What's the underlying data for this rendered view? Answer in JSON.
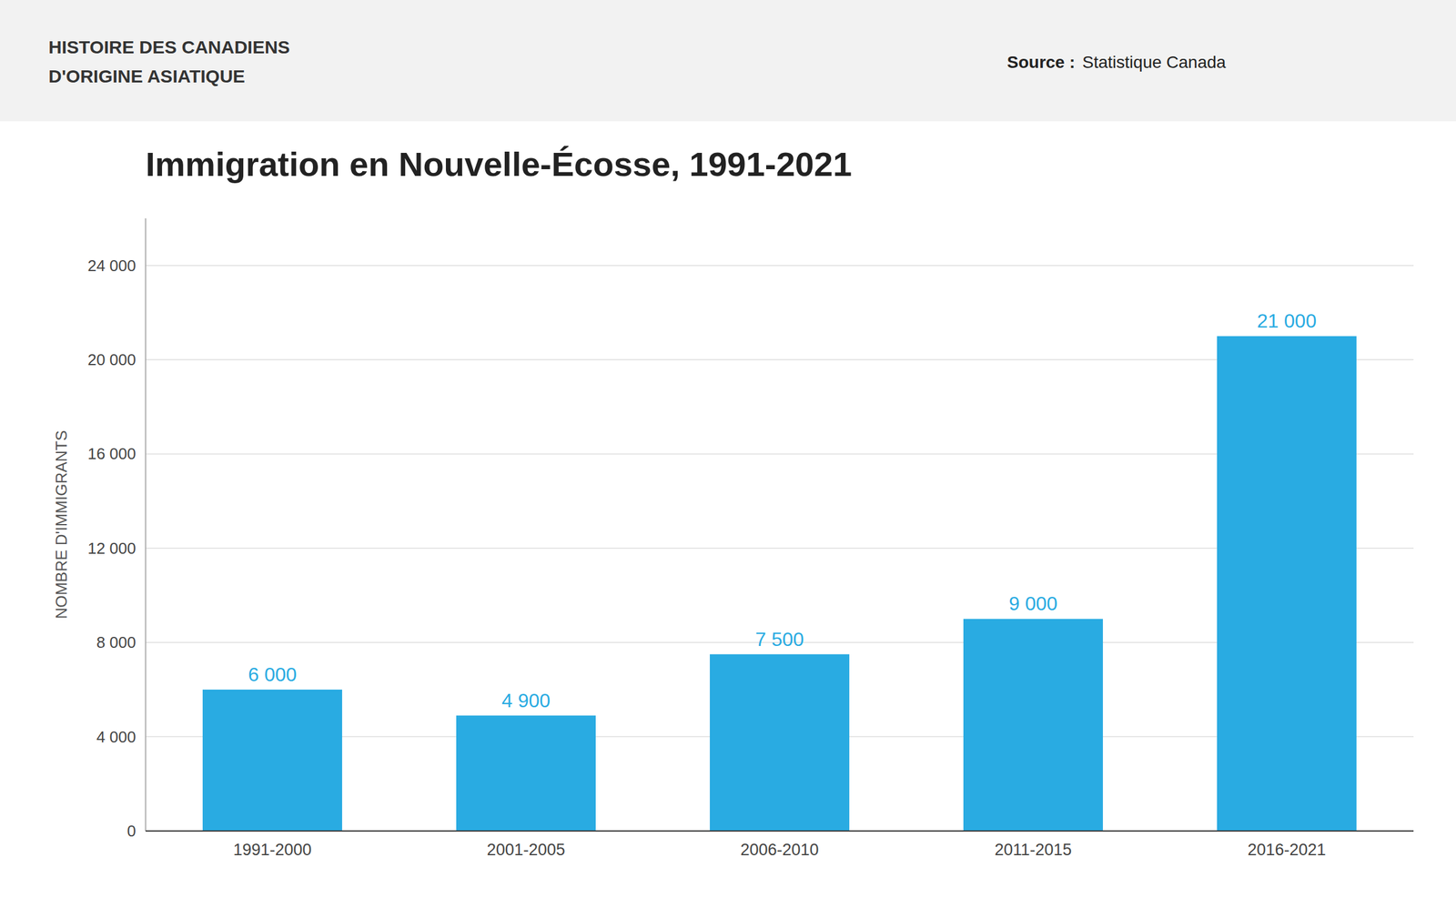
{
  "chart_data": {
    "type": "bar",
    "title": "Immigration en Nouvelle-Écosse, 1991-2021",
    "ylabel": "NOMBRE D'IMMIGRANTS",
    "annotations": [
      "HISTOIRE DES CANADIENS",
      "D'ORIGINE ASIATIQUE",
      "Source :",
      "Statistique Canada"
    ],
    "categories": [
      "1991-2000",
      "2001-2005",
      "2006-2010",
      "2011-2015",
      "2016-2021"
    ],
    "values": [
      6000,
      4900,
      7500,
      9000,
      21000
    ],
    "value_labels": [
      "6 000",
      "4 900",
      "7 500",
      "9 000",
      "21 000"
    ],
    "data_labels": true,
    "color": "#29ABE2",
    "ylim": [
      0,
      26000
    ],
    "yticks": [
      0,
      {
        "value": 4000,
        "label": "4 000"
      },
      {
        "value": 8000,
        "label": "8 000"
      },
      {
        "value": 12000,
        "label": "12 000"
      },
      {
        "value": 16000,
        "label": "16 000"
      },
      {
        "value": 20000,
        "label": "20 000"
      },
      {
        "value": 24000,
        "label": "24 000"
      }
    ],
    "grid": true
  }
}
